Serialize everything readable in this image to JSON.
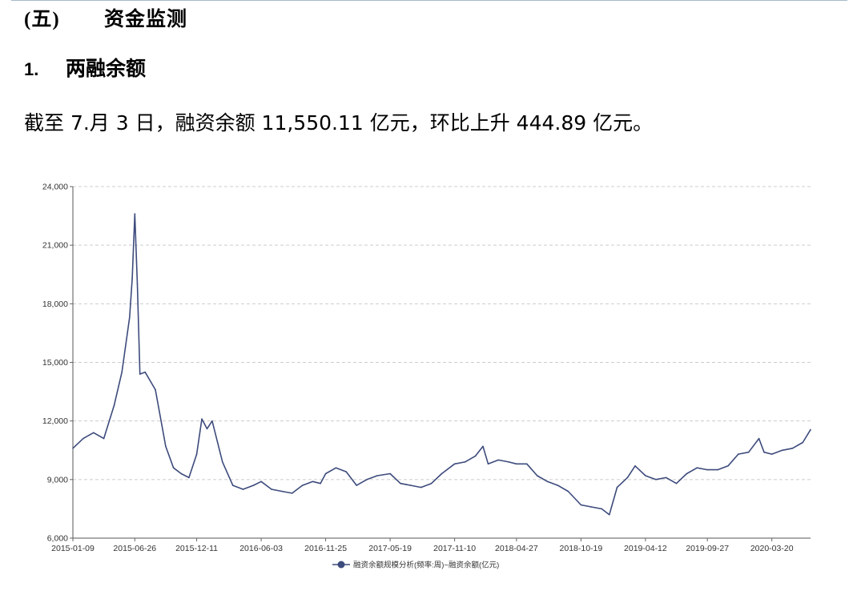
{
  "section": {
    "number": "(五)",
    "title": "资金监测"
  },
  "subsection": {
    "number": "1.",
    "title": "两融余额"
  },
  "paragraph": "截至 7.月 3 日，融资余额 11,550.11 亿元，环比上升 444.89 亿元。",
  "chart_data": {
    "type": "line",
    "title": "",
    "xlabel": "",
    "ylabel": "",
    "ylim": [
      6000,
      24000
    ],
    "yticks": [
      6000,
      9000,
      12000,
      15000,
      18000,
      21000,
      24000
    ],
    "ytick_labels": [
      "6,000",
      "9,000",
      "12,000",
      "15,000",
      "18,000",
      "21,000",
      "24,000"
    ],
    "xtick_labels": [
      "2015-01-09",
      "2015-06-26",
      "2015-12-11",
      "2016-06-03",
      "2016-11-25",
      "2017-05-19",
      "2017-11-10",
      "2018-04-27",
      "2018-10-19",
      "2019-04-12",
      "2019-09-27",
      "2020-03-20"
    ],
    "grid": "horizontal dashed",
    "legend_position": "bottom-center",
    "line_color": "#3d4b7c",
    "series": [
      {
        "name": "融资余额规模分析(频率:周)~融资余额(亿元)",
        "x": [
          "2015-01-09",
          "2015-02-06",
          "2015-03-06",
          "2015-04-03",
          "2015-05-01",
          "2015-05-22",
          "2015-06-12",
          "2015-06-19",
          "2015-06-26",
          "2015-07-03",
          "2015-07-10",
          "2015-07-24",
          "2015-08-21",
          "2015-09-18",
          "2015-10-09",
          "2015-10-30",
          "2015-11-20",
          "2015-12-11",
          "2015-12-25",
          "2016-01-08",
          "2016-01-22",
          "2016-02-19",
          "2016-03-18",
          "2016-04-15",
          "2016-05-13",
          "2016-06-03",
          "2016-07-01",
          "2016-07-29",
          "2016-08-26",
          "2016-09-23",
          "2016-10-21",
          "2016-11-11",
          "2016-11-25",
          "2016-12-23",
          "2017-01-20",
          "2017-02-17",
          "2017-03-17",
          "2017-04-14",
          "2017-05-19",
          "2017-06-16",
          "2017-07-14",
          "2017-08-11",
          "2017-09-08",
          "2017-10-06",
          "2017-11-10",
          "2017-12-08",
          "2018-01-05",
          "2018-01-26",
          "2018-02-09",
          "2018-03-09",
          "2018-04-06",
          "2018-04-27",
          "2018-05-25",
          "2018-06-22",
          "2018-07-20",
          "2018-08-17",
          "2018-09-14",
          "2018-10-19",
          "2018-11-16",
          "2018-12-14",
          "2019-01-04",
          "2019-01-25",
          "2019-02-22",
          "2019-03-15",
          "2019-04-12",
          "2019-05-10",
          "2019-06-07",
          "2019-07-05",
          "2019-08-02",
          "2019-08-30",
          "2019-09-27",
          "2019-10-25",
          "2019-11-22",
          "2019-12-20",
          "2020-01-17",
          "2020-02-14",
          "2020-02-28",
          "2020-03-20",
          "2020-04-17",
          "2020-05-15",
          "2020-06-12",
          "2020-07-03"
        ],
        "values": [
          10600,
          11100,
          11400,
          11100,
          12800,
          14500,
          17300,
          19300,
          22600,
          19000,
          14400,
          14500,
          13600,
          10700,
          9600,
          9300,
          9100,
          10300,
          12100,
          11600,
          12000,
          9900,
          8700,
          8500,
          8700,
          8900,
          8500,
          8400,
          8300,
          8700,
          8900,
          8800,
          9300,
          9600,
          9400,
          8700,
          9000,
          9200,
          9300,
          8800,
          8700,
          8600,
          8800,
          9300,
          9800,
          9900,
          10200,
          10700,
          9800,
          10000,
          9900,
          9800,
          9800,
          9200,
          8900,
          8700,
          8400,
          7700,
          7600,
          7500,
          7200,
          8600,
          9100,
          9700,
          9200,
          9000,
          9100,
          8800,
          9300,
          9600,
          9500,
          9500,
          9700,
          10300,
          10400,
          11100,
          10400,
          10300,
          10500,
          10600,
          10900,
          11550
        ]
      }
    ]
  }
}
